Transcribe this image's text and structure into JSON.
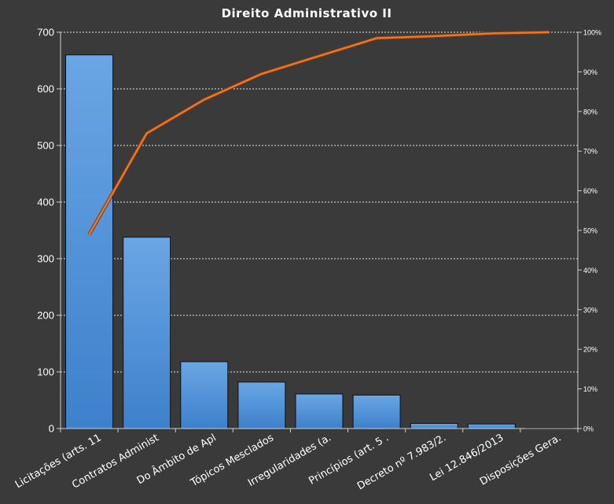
{
  "chart_data": {
    "type": "bar",
    "title": "Direito  Administrativo  II",
    "categories": [
      "Licitações (arts. 11",
      "Contratos Administ",
      "Do Âmbito de Apl",
      "Tópicos Mesclados",
      "Irregularidades (a.",
      "Princípios (art. 5 .",
      "Decreto nº 7.983/2.",
      "Lei 12.846/2013",
      "Disposições Gera."
    ],
    "values": [
      660,
      338,
      118,
      82,
      61,
      59,
      9,
      8,
      1
    ],
    "cumulative_percent": [
      49,
      74.5,
      83,
      89.5,
      94,
      98.5,
      99,
      99.7,
      100
    ],
    "ylim": [
      0,
      700
    ],
    "yticks": [
      "0",
      "100",
      "200",
      "300",
      "400",
      "500",
      "600",
      "700"
    ],
    "y2lim": [
      0,
      100
    ],
    "y2ticks": [
      "0%",
      "10%",
      "20%",
      "30%",
      "40%",
      "50%",
      "60%",
      "70%",
      "80%",
      "90%",
      "100%"
    ],
    "grid": true,
    "colors": {
      "background": "#3a3a3a",
      "bar_top": "#6aa6e4",
      "bar_bottom": "#3d80cc",
      "line": "#e8782a",
      "grid": "#ffffff",
      "text": "#ffffff"
    }
  }
}
